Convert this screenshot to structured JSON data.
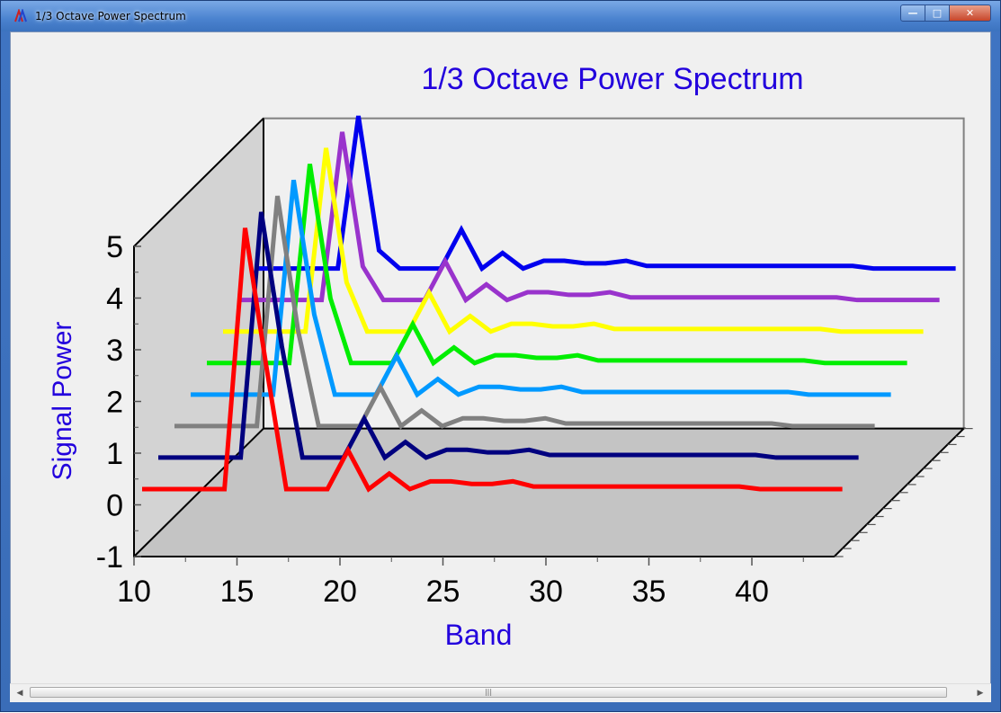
{
  "window": {
    "title": "1/3 Octave Power Spectrum",
    "minimize_label": "—",
    "maximize_label": "□",
    "close_label": "✕"
  },
  "scrollbar": {
    "left_label": "◀",
    "right_label": "▶",
    "thumb_grip": "|||"
  },
  "chart_data": {
    "type": "line",
    "style": "3d-waterfall",
    "title": "1/3 Octave Power Spectrum",
    "xlabel": "Band",
    "ylabel": "Signal Power",
    "xlim": [
      10,
      44
    ],
    "ylim": [
      -1,
      5
    ],
    "xticks": [
      10,
      15,
      20,
      25,
      30,
      35,
      40
    ],
    "yticks": [
      -1,
      0,
      1,
      2,
      3,
      4,
      5
    ],
    "bands": [
      10,
      11,
      12,
      13,
      14,
      15,
      16,
      17,
      18,
      19,
      20,
      21,
      22,
      23,
      24,
      25,
      26,
      27,
      28,
      29,
      30,
      31,
      32,
      33,
      34,
      35,
      36,
      37,
      38,
      39,
      40,
      41,
      42,
      43,
      44
    ],
    "series": [
      {
        "color": "#ff0000",
        "values": [
          0.15,
          0.15,
          0.15,
          0.15,
          0.15,
          5.2,
          2.6,
          0.15,
          0.15,
          0.15,
          0.9,
          0.15,
          0.45,
          0.15,
          0.3,
          0.3,
          0.25,
          0.25,
          0.3,
          0.2,
          0.2,
          0.2,
          0.2,
          0.2,
          0.2,
          0.2,
          0.2,
          0.2,
          0.2,
          0.2,
          0.15,
          0.15,
          0.15,
          0.15,
          0.15
        ]
      },
      {
        "color": "#00007f",
        "values": [
          0.45,
          0.45,
          0.45,
          0.45,
          0.45,
          5.2,
          2.6,
          0.45,
          0.45,
          0.45,
          1.2,
          0.45,
          0.75,
          0.45,
          0.6,
          0.6,
          0.55,
          0.55,
          0.6,
          0.5,
          0.5,
          0.5,
          0.5,
          0.5,
          0.5,
          0.5,
          0.5,
          0.5,
          0.5,
          0.5,
          0.45,
          0.45,
          0.45,
          0.45,
          0.45
        ]
      },
      {
        "color": "#808080",
        "values": [
          0.75,
          0.75,
          0.75,
          0.75,
          0.75,
          5.2,
          2.6,
          0.75,
          0.75,
          0.75,
          1.5,
          0.75,
          1.05,
          0.75,
          0.9,
          0.9,
          0.85,
          0.85,
          0.9,
          0.8,
          0.8,
          0.8,
          0.8,
          0.8,
          0.8,
          0.8,
          0.8,
          0.8,
          0.8,
          0.8,
          0.75,
          0.75,
          0.75,
          0.75,
          0.75
        ]
      },
      {
        "color": "#0099ff",
        "values": [
          1.05,
          1.05,
          1.05,
          1.05,
          1.05,
          5.2,
          2.6,
          1.05,
          1.05,
          1.05,
          1.8,
          1.05,
          1.35,
          1.05,
          1.2,
          1.2,
          1.15,
          1.15,
          1.2,
          1.1,
          1.1,
          1.1,
          1.1,
          1.1,
          1.1,
          1.1,
          1.1,
          1.1,
          1.1,
          1.1,
          1.05,
          1.05,
          1.05,
          1.05,
          1.05
        ]
      },
      {
        "color": "#00ee00",
        "values": [
          1.35,
          1.35,
          1.35,
          1.35,
          1.35,
          5.2,
          2.6,
          1.35,
          1.35,
          1.35,
          2.1,
          1.35,
          1.65,
          1.35,
          1.5,
          1.5,
          1.45,
          1.45,
          1.5,
          1.4,
          1.4,
          1.4,
          1.4,
          1.4,
          1.4,
          1.4,
          1.4,
          1.4,
          1.4,
          1.4,
          1.35,
          1.35,
          1.35,
          1.35,
          1.35
        ]
      },
      {
        "color": "#ffff00",
        "values": [
          1.65,
          1.65,
          1.65,
          1.65,
          1.65,
          5.2,
          2.6,
          1.65,
          1.65,
          1.65,
          2.4,
          1.65,
          1.95,
          1.65,
          1.8,
          1.8,
          1.75,
          1.75,
          1.8,
          1.7,
          1.7,
          1.7,
          1.7,
          1.7,
          1.7,
          1.7,
          1.7,
          1.7,
          1.7,
          1.7,
          1.65,
          1.65,
          1.65,
          1.65,
          1.65
        ]
      },
      {
        "color": "#9933cc",
        "values": [
          1.95,
          1.95,
          1.95,
          1.95,
          1.95,
          5.2,
          2.6,
          1.95,
          1.95,
          1.95,
          2.7,
          1.95,
          2.25,
          1.95,
          2.1,
          2.1,
          2.05,
          2.05,
          2.1,
          2.0,
          2.0,
          2.0,
          2.0,
          2.0,
          2.0,
          2.0,
          2.0,
          2.0,
          2.0,
          2.0,
          1.95,
          1.95,
          1.95,
          1.95,
          1.95
        ]
      },
      {
        "color": "#0000ee",
        "values": [
          2.25,
          2.25,
          2.25,
          2.25,
          2.25,
          5.2,
          2.6,
          2.25,
          2.25,
          2.25,
          3.0,
          2.25,
          2.55,
          2.25,
          2.4,
          2.4,
          2.35,
          2.35,
          2.4,
          2.3,
          2.3,
          2.3,
          2.3,
          2.3,
          2.3,
          2.3,
          2.3,
          2.3,
          2.3,
          2.3,
          2.25,
          2.25,
          2.25,
          2.25,
          2.25
        ]
      }
    ],
    "colors": {
      "title": "#2200dd",
      "wall": "#d3d3d3",
      "floor": "#c4c4c4",
      "axis": "#000000",
      "background": "#f0f0f0"
    }
  }
}
